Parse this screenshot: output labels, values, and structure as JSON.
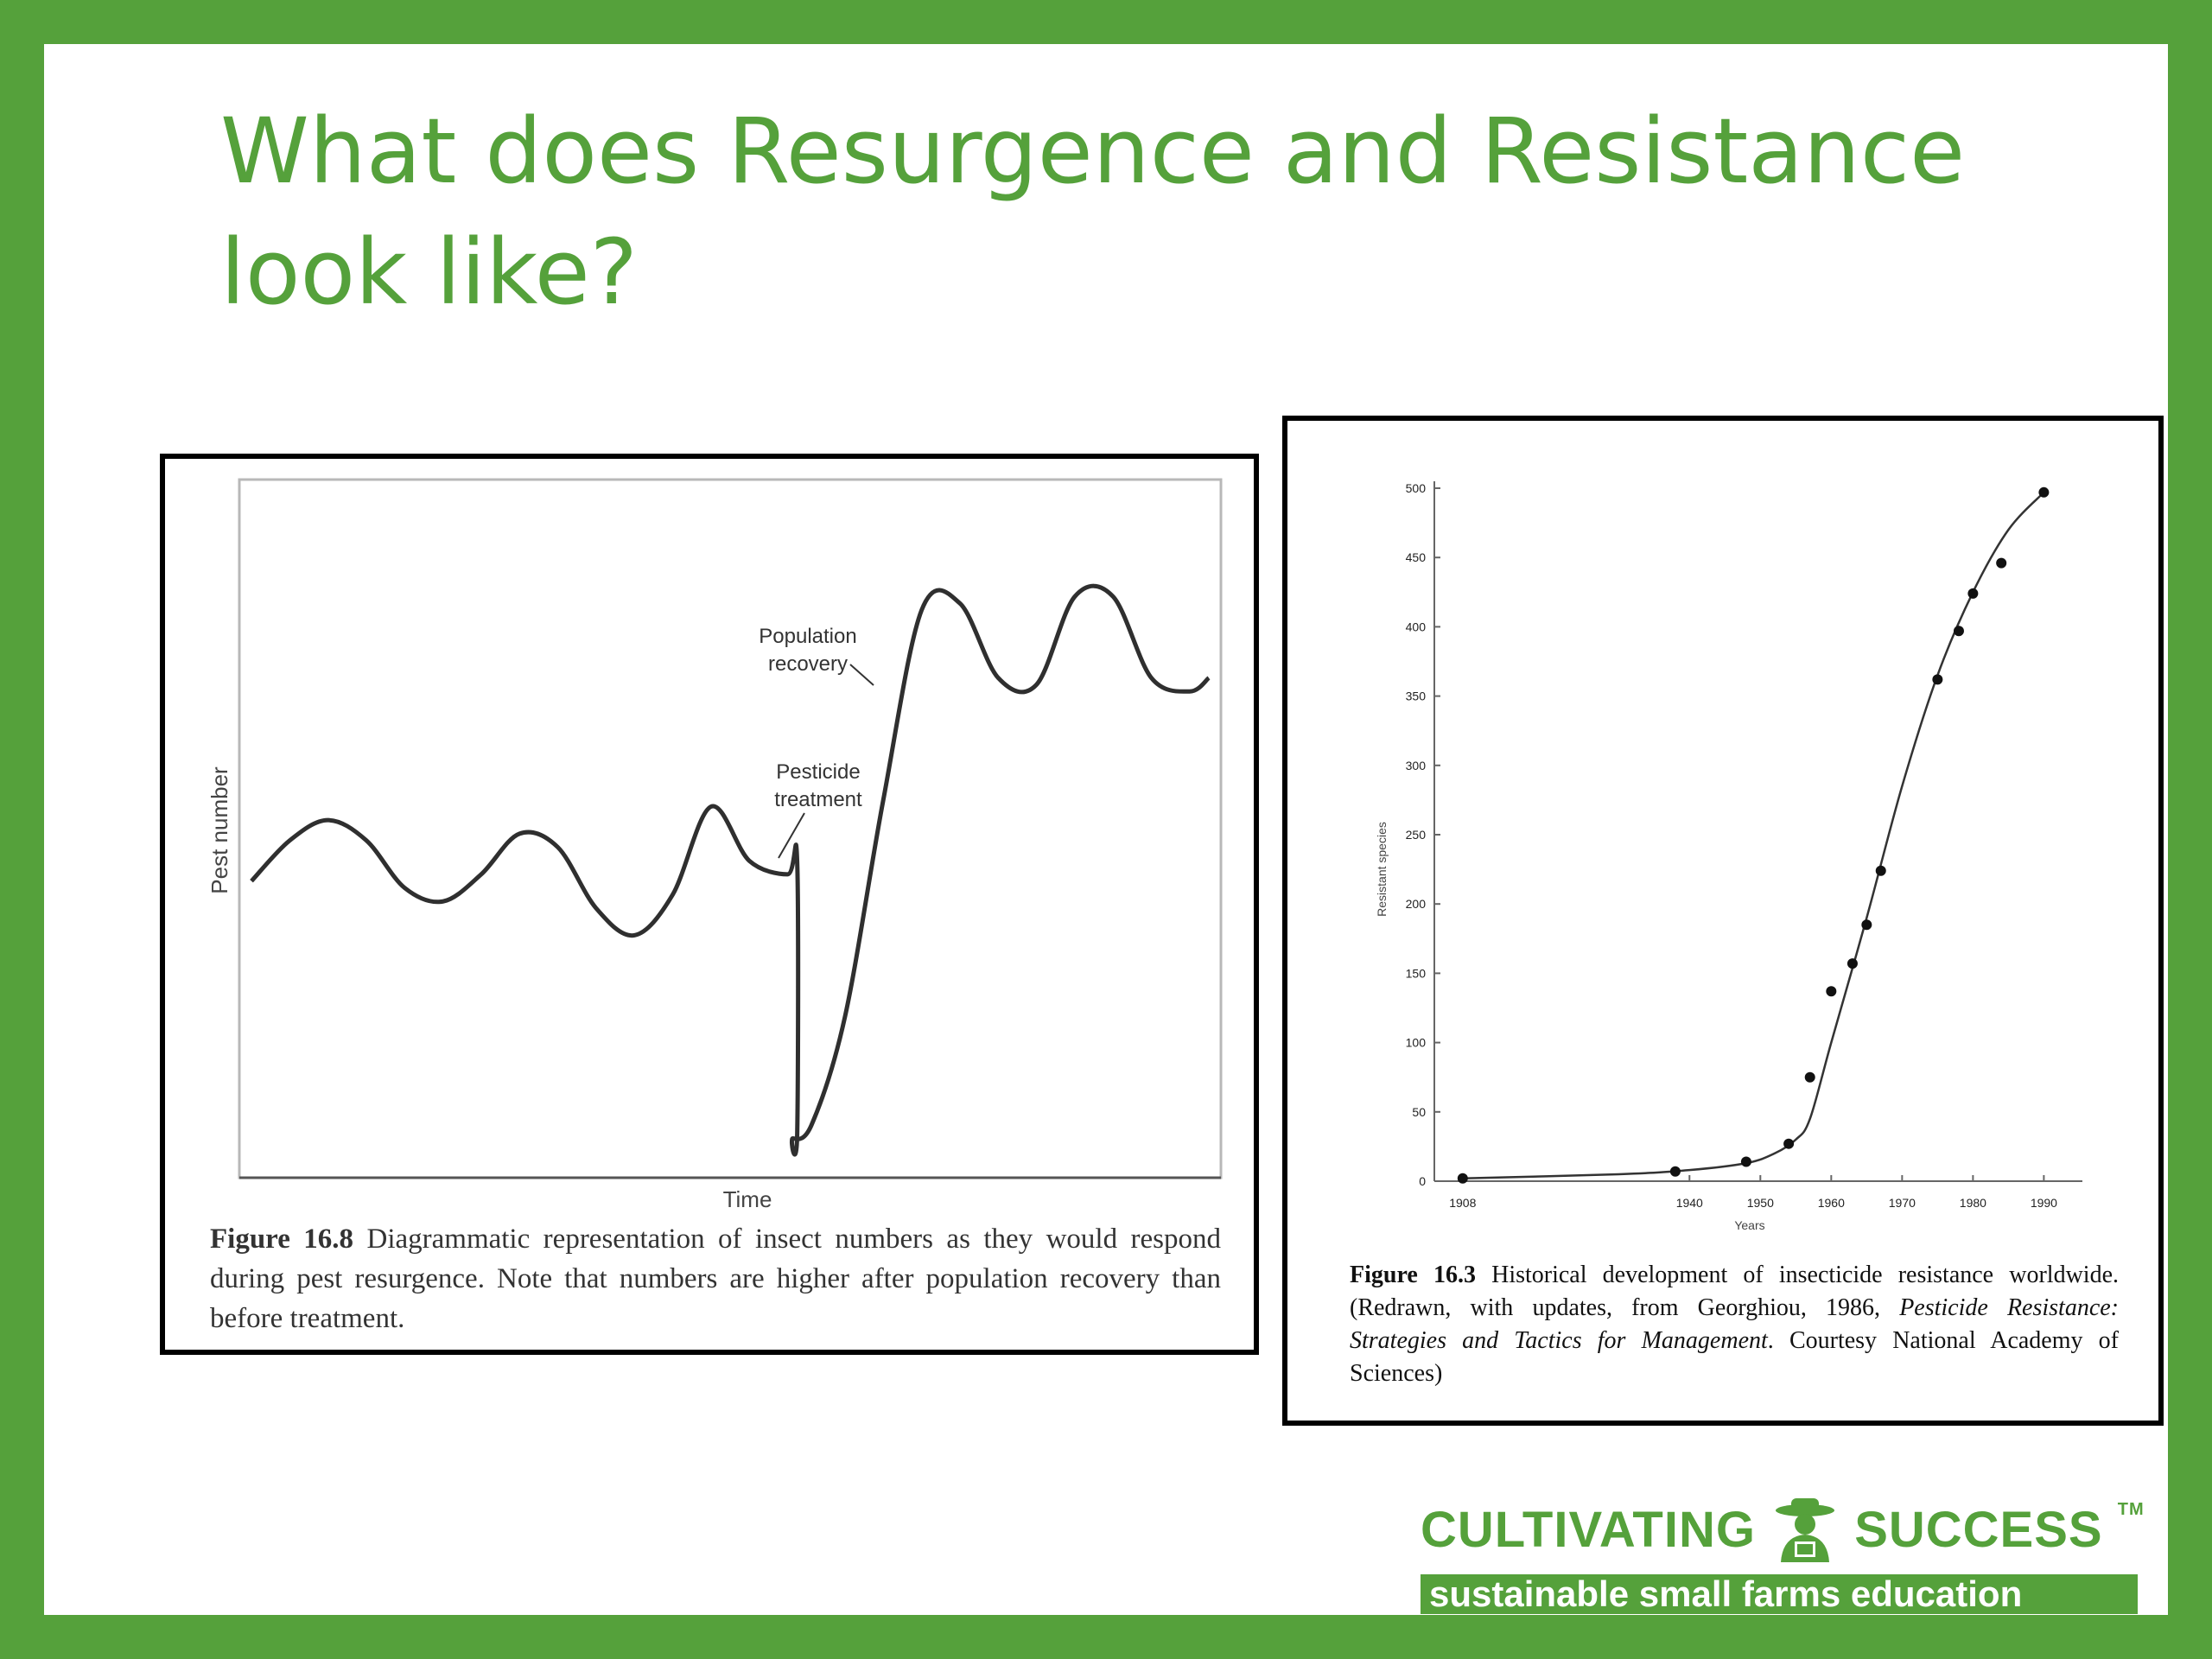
{
  "slide": {
    "title": "What does Resurgence and Resistance look like?",
    "colors": {
      "brand_green": "#55a13b",
      "background": "#ffffff"
    }
  },
  "figure_left": {
    "caption_label": "Figure 16.8",
    "caption_text": "Diagrammatic representation of insect numbers as they would respond during pest resurgence. Note that numbers are higher after population recovery than before treatment."
  },
  "figure_right": {
    "caption_label": "Figure 16.3",
    "caption_text": "Historical development of insecticide resistance worldwide. (Redrawn, with updates, from Georghiou, 1986,",
    "caption_italic_1": "Pesticide Resistance: Strategies and Tactics for Management",
    "caption_text_2": ". Courtesy National Academy of Sciences)"
  },
  "logo": {
    "word_left": "CULTIVATING",
    "word_right": "SUCCESS",
    "trademark": "TM",
    "tagline": "sustainable small farms education",
    "icon": "farmer-icon"
  },
  "chart_data": [
    {
      "type": "line",
      "title": "",
      "xlabel": "Time",
      "ylabel": "Pest number",
      "x_ticks": [],
      "y_ticks": [],
      "grid": false,
      "annotations": [
        {
          "text": [
            "Population",
            "recovery"
          ],
          "at": "rising limb after treatment"
        },
        {
          "text": [
            "Pesticide",
            "treatment"
          ],
          "at": "sudden drop"
        }
      ],
      "series": [
        {
          "name": "",
          "x": [
            0,
            0.04,
            0.08,
            0.12,
            0.16,
            0.2,
            0.24,
            0.28,
            0.32,
            0.36,
            0.4,
            0.44,
            0.48,
            0.52,
            0.56,
            0.57,
            0.5701,
            0.565,
            0.585,
            0.62,
            0.66,
            0.7,
            0.74,
            0.78,
            0.82,
            0.86,
            0.9,
            0.94,
            0.98,
            1.0
          ],
          "y": [
            0.42,
            0.48,
            0.51,
            0.48,
            0.41,
            0.39,
            0.43,
            0.49,
            0.47,
            0.38,
            0.34,
            0.4,
            0.53,
            0.45,
            0.43,
            0.45,
            0.05,
            0.04,
            0.06,
            0.22,
            0.54,
            0.82,
            0.83,
            0.72,
            0.71,
            0.84,
            0.84,
            0.72,
            0.7,
            0.72
          ]
        }
      ]
    },
    {
      "type": "scatter",
      "title": "",
      "xlabel": "Years",
      "ylabel": "Resistant species",
      "xlim": [
        1904,
        1993
      ],
      "ylim": [
        0,
        500
      ],
      "x_ticks": [
        "1908",
        "1940",
        "1950",
        "1960",
        "1970",
        "1980",
        "1990"
      ],
      "y_ticks": [
        0,
        50,
        100,
        150,
        200,
        250,
        300,
        350,
        400,
        450,
        500
      ],
      "grid": false,
      "series": [
        {
          "name": "",
          "x": [
            1908,
            1938,
            1948,
            1954,
            1957,
            1960,
            1963,
            1965,
            1967,
            1975,
            1978,
            1980,
            1984,
            1990
          ],
          "y": [
            2,
            7,
            14,
            27,
            75,
            137,
            157,
            185,
            224,
            362,
            397,
            424,
            446,
            497
          ]
        }
      ],
      "trend_line": {
        "x": [
          1908,
          1930,
          1940,
          1948,
          1952,
          1955,
          1957,
          1960,
          1965,
          1970,
          1975,
          1980,
          1985,
          1990
        ],
        "y": [
          2,
          5,
          8,
          13,
          20,
          30,
          45,
          100,
          190,
          285,
          365,
          425,
          470,
          497
        ]
      }
    }
  ]
}
